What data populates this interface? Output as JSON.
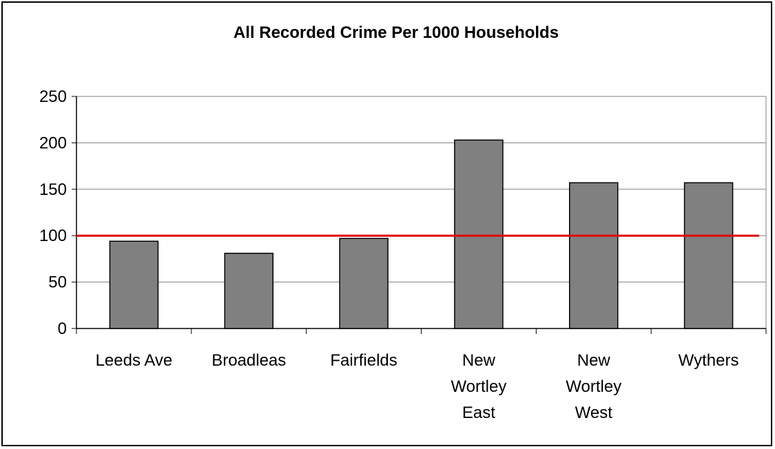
{
  "chart_data": {
    "type": "bar",
    "title": "All Recorded Crime Per 1000 Households",
    "categories": [
      [
        "Leeds Ave"
      ],
      [
        "Broadleas"
      ],
      [
        "Fairfields"
      ],
      [
        "New",
        "Wortley",
        "East"
      ],
      [
        "New",
        "Wortley",
        "West"
      ],
      [
        "Wythers"
      ]
    ],
    "values": [
      94,
      81,
      97,
      203,
      157,
      157
    ],
    "ylim": [
      0,
      250
    ],
    "yticks": [
      0,
      50,
      100,
      150,
      200,
      250
    ],
    "reference_line": {
      "value": 100
    },
    "grid": true,
    "bar_color": "#808080",
    "reference_line_color": "#e00000"
  }
}
